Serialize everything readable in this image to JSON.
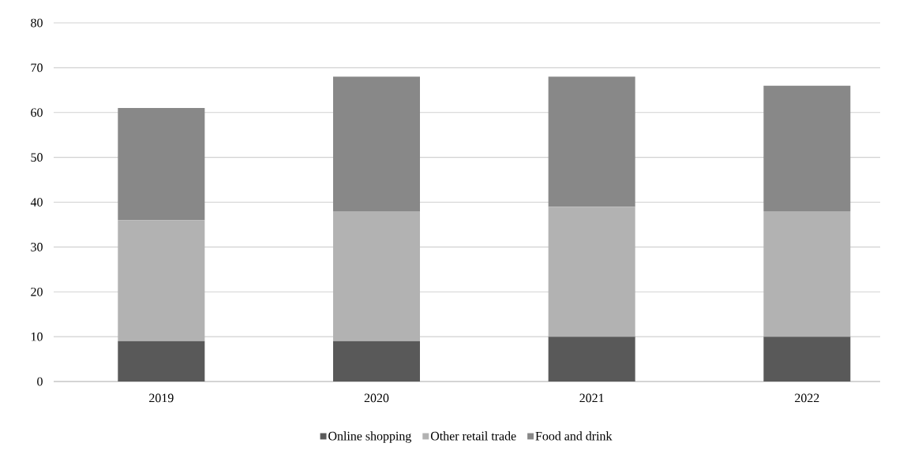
{
  "chart_data": {
    "type": "bar",
    "stacked": true,
    "categories": [
      "2019",
      "2020",
      "2021",
      "2022"
    ],
    "series": [
      {
        "name": "Online shopping",
        "color": "#595959",
        "values": [
          9,
          9,
          10,
          10
        ]
      },
      {
        "name": "Other retail trade",
        "color": "#b2b2b2",
        "values": [
          27,
          29,
          29,
          28
        ]
      },
      {
        "name": "Food and drink",
        "color": "#888888",
        "values": [
          25,
          30,
          29,
          28
        ]
      }
    ],
    "ylim": [
      0,
      80
    ],
    "yticks": [
      0,
      10,
      20,
      30,
      40,
      50,
      60,
      70,
      80
    ],
    "grid": "y",
    "legend": "bottom"
  }
}
